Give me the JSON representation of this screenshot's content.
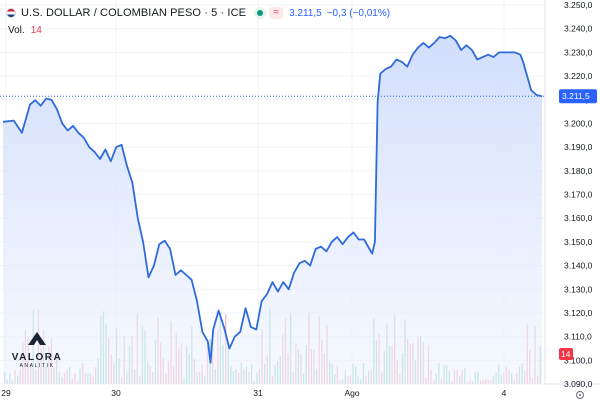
{
  "header": {
    "title": "U.S. DOLLAR / COLOMBIAN PESO · 5 · ICE",
    "last_price": "3.211,5",
    "change": "−0,3 (−0,01%)"
  },
  "volume": {
    "label": "Vol.",
    "value": "14",
    "badge": "14"
  },
  "price_axis": {
    "ticks": [
      "3.250,0",
      "3.240,0",
      "3.230,0",
      "3.220,0",
      "3.210,0",
      "3.200,0",
      "3.190,0",
      "3.180,0",
      "3.170,0",
      "3.160,0",
      "3.150,0",
      "3.140,0",
      "3.130,0",
      "3.120,0",
      "3.110,0",
      "3.100,0",
      "3.090,0"
    ],
    "last_label": "3.211,5"
  },
  "time_axis": {
    "labels": [
      "29",
      "30",
      "31",
      "Ago",
      "4"
    ]
  },
  "watermark": {
    "name": "VALORA",
    "sub": "ANALITIK"
  },
  "colors": {
    "line": "#2f6bdb",
    "area_top": "#cfdcfb",
    "vol_up": "#9ed7cd",
    "vol_down": "#f2b7bb",
    "badge": "#f23645",
    "accent": "#2962ff"
  },
  "icons": [
    "flag-icon",
    "live-status-icon",
    "compare-icon",
    "settings-icon"
  ],
  "chart_data": {
    "type": "area",
    "title": "U.S. DOLLAR / COLOMBIAN PESO · 5 · ICE",
    "ylim": [
      3090,
      3250
    ],
    "x_labels": [
      "29",
      "30",
      "31",
      "Ago",
      "4"
    ],
    "series": [
      {
        "name": "USD/COP",
        "points": [
          [
            0.0,
            3200.7
          ],
          [
            0.02,
            3201.2
          ],
          [
            0.035,
            3196.0
          ],
          [
            0.05,
            3208.0
          ],
          [
            0.06,
            3209.8
          ],
          [
            0.07,
            3207.5
          ],
          [
            0.08,
            3210.5
          ],
          [
            0.09,
            3210.0
          ],
          [
            0.1,
            3206.0
          ],
          [
            0.11,
            3200.0
          ],
          [
            0.12,
            3197.0
          ],
          [
            0.13,
            3199.0
          ],
          [
            0.14,
            3196.0
          ],
          [
            0.15,
            3194.0
          ],
          [
            0.16,
            3190.0
          ],
          [
            0.17,
            3188.0
          ],
          [
            0.18,
            3185.0
          ],
          [
            0.19,
            3189.0
          ],
          [
            0.2,
            3184.0
          ],
          [
            0.21,
            3190.0
          ],
          [
            0.22,
            3191.0
          ],
          [
            0.23,
            3182.0
          ],
          [
            0.24,
            3175.0
          ],
          [
            0.25,
            3160.0
          ],
          [
            0.26,
            3150.0
          ],
          [
            0.27,
            3135.0
          ],
          [
            0.28,
            3140.0
          ],
          [
            0.29,
            3149.0
          ],
          [
            0.3,
            3150.5
          ],
          [
            0.31,
            3147.0
          ],
          [
            0.32,
            3136.0
          ],
          [
            0.33,
            3138.0
          ],
          [
            0.34,
            3136.0
          ],
          [
            0.35,
            3134.0
          ],
          [
            0.36,
            3125.0
          ],
          [
            0.37,
            3112.0
          ],
          [
            0.38,
            3108.0
          ],
          [
            0.385,
            3099.0
          ],
          [
            0.39,
            3113.0
          ],
          [
            0.4,
            3121.0
          ],
          [
            0.41,
            3114.0
          ],
          [
            0.42,
            3105.0
          ],
          [
            0.43,
            3110.0
          ],
          [
            0.44,
            3112.0
          ],
          [
            0.45,
            3122.0
          ],
          [
            0.46,
            3114.0
          ],
          [
            0.47,
            3113.0
          ],
          [
            0.48,
            3125.0
          ],
          [
            0.49,
            3128.0
          ],
          [
            0.5,
            3133.0
          ],
          [
            0.51,
            3129.0
          ],
          [
            0.52,
            3133.0
          ],
          [
            0.53,
            3130.0
          ],
          [
            0.54,
            3137.0
          ],
          [
            0.55,
            3141.0
          ],
          [
            0.56,
            3142.0
          ],
          [
            0.57,
            3140.0
          ],
          [
            0.58,
            3147.0
          ],
          [
            0.59,
            3148.0
          ],
          [
            0.6,
            3146.0
          ],
          [
            0.61,
            3150.0
          ],
          [
            0.62,
            3152.0
          ],
          [
            0.63,
            3149.0
          ],
          [
            0.64,
            3152.0
          ],
          [
            0.65,
            3154.0
          ],
          [
            0.66,
            3151.0
          ],
          [
            0.67,
            3151.0
          ],
          [
            0.68,
            3147.0
          ],
          [
            0.685,
            3145.0
          ],
          [
            0.69,
            3150.0
          ],
          [
            0.695,
            3209.0
          ],
          [
            0.7,
            3221.0
          ],
          [
            0.71,
            3223.0
          ],
          [
            0.72,
            3224.0
          ],
          [
            0.73,
            3227.0
          ],
          [
            0.74,
            3226.0
          ],
          [
            0.75,
            3224.0
          ],
          [
            0.76,
            3229.0
          ],
          [
            0.77,
            3232.0
          ],
          [
            0.78,
            3234.0
          ],
          [
            0.79,
            3232.0
          ],
          [
            0.8,
            3234.0
          ],
          [
            0.81,
            3236.5
          ],
          [
            0.82,
            3236.0
          ],
          [
            0.83,
            3237.0
          ],
          [
            0.84,
            3235.0
          ],
          [
            0.85,
            3231.0
          ],
          [
            0.86,
            3233.0
          ],
          [
            0.87,
            3231.0
          ],
          [
            0.88,
            3227.0
          ],
          [
            0.89,
            3228.0
          ],
          [
            0.9,
            3229.0
          ],
          [
            0.91,
            3228.0
          ],
          [
            0.92,
            3230.0
          ],
          [
            0.93,
            3230.0
          ],
          [
            0.94,
            3230.0
          ],
          [
            0.95,
            3230.0
          ],
          [
            0.96,
            3229.0
          ],
          [
            0.965,
            3226.0
          ],
          [
            0.97,
            3222.0
          ],
          [
            0.975,
            3218.0
          ],
          [
            0.98,
            3214.0
          ],
          [
            0.99,
            3212.0
          ],
          [
            1.0,
            3211.5
          ]
        ]
      }
    ]
  }
}
